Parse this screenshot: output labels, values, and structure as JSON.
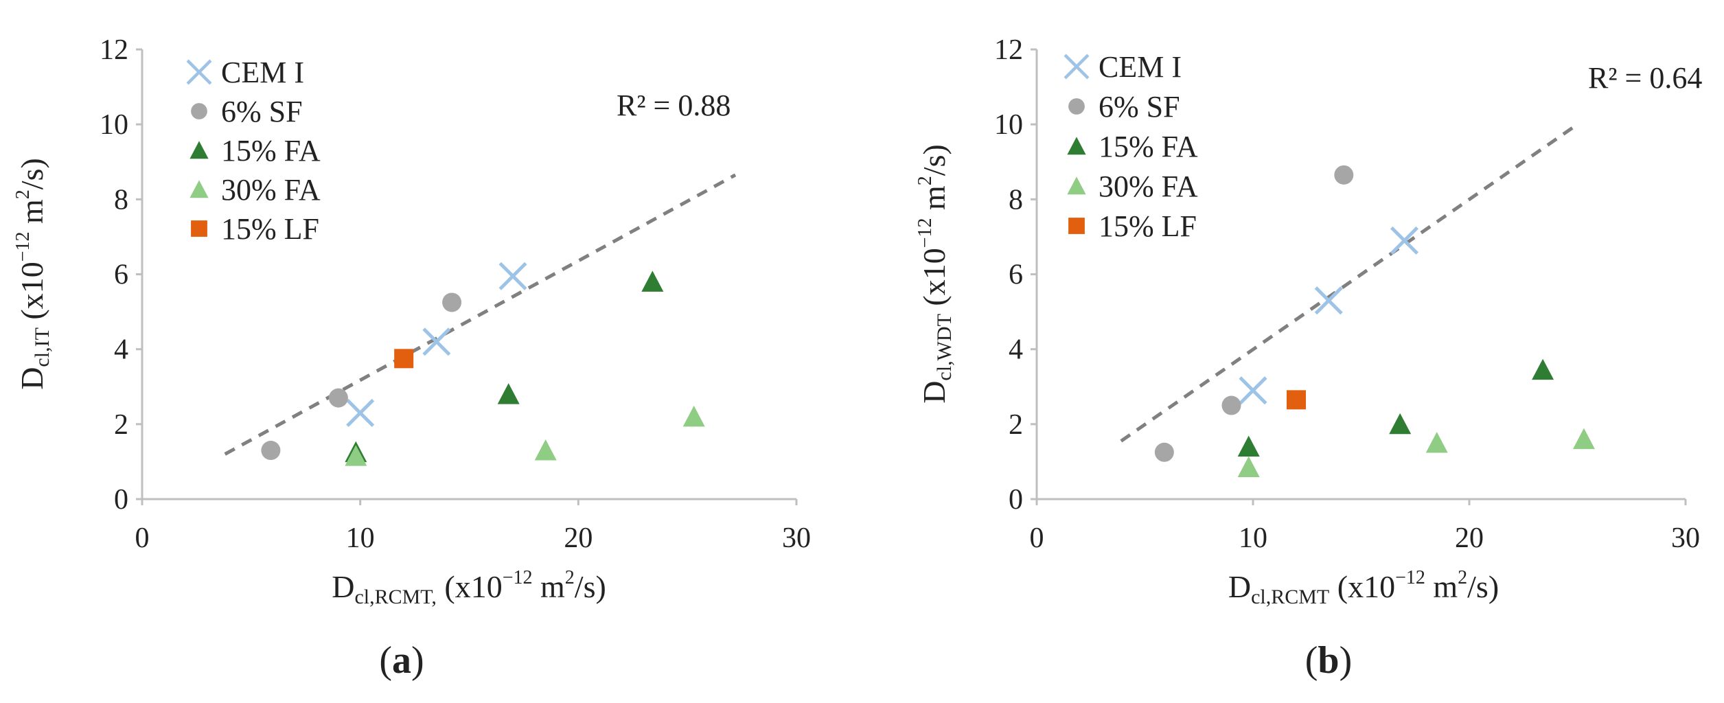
{
  "colors": {
    "cem": "#9dc3e6",
    "sf": "#a6a6a6",
    "fa15": "#2e7d32",
    "fa30": "#8fcd84",
    "lf": "#e25f0f",
    "trend": "#808080",
    "axis": "#c8c8c8"
  },
  "icons": {
    "CEM I": "cross-marker-icon",
    "6% SF": "circle-marker-icon",
    "15% FA": "triangle-marker-icon",
    "30% FA": "triangle-marker-icon",
    "15% LF": "square-marker-icon"
  },
  "chart_data": [
    {
      "type": "scatter",
      "id": "a",
      "caption": {
        "open": "(",
        "letter": "a",
        "close": ")"
      },
      "xlim": [
        0,
        30
      ],
      "ylim": [
        0,
        12
      ],
      "xticks": [
        "0",
        "10",
        "20",
        "30"
      ],
      "yticks": [
        "0",
        "2",
        "4",
        "6",
        "8",
        "10",
        "12"
      ],
      "xlabel": {
        "main": "D",
        "sub": "cl,RCMT,",
        "pre": " (x10",
        "sup": "−12",
        "mid": " m",
        "sup2": "2",
        "post": "/s)"
      },
      "ylabel": {
        "main": "D",
        "sub": "cl,IT",
        "pre": " (x10",
        "sup": "−12",
        "mid": " m",
        "sup2": "2",
        "post": "/s)"
      },
      "legend_position": "top-left",
      "r2": "R² = 0.88",
      "trendline": {
        "x": [
          3.8,
          27.2
        ],
        "y": [
          1.2,
          8.65
        ]
      },
      "series": [
        {
          "name": "CEM I",
          "marker": "x",
          "x": [
            10.0,
            13.5,
            17.0
          ],
          "y": [
            2.3,
            4.2,
            5.95
          ]
        },
        {
          "name": "6% SF",
          "marker": "circle",
          "x": [
            5.9,
            9.0,
            14.2
          ],
          "y": [
            1.3,
            2.7,
            5.25
          ]
        },
        {
          "name": "15% FA",
          "marker": "triangle",
          "x": [
            9.8,
            16.8,
            23.4
          ],
          "y": [
            1.25,
            2.8,
            5.8
          ]
        },
        {
          "name": "30% FA",
          "marker": "triangle",
          "x": [
            9.8,
            18.5,
            25.3
          ],
          "y": [
            1.15,
            1.3,
            2.2
          ]
        },
        {
          "name": "15% LF",
          "marker": "square",
          "x": [
            12.0
          ],
          "y": [
            3.75
          ]
        }
      ]
    },
    {
      "type": "scatter",
      "id": "b",
      "caption": {
        "open": "(",
        "letter": "b",
        "close": ")"
      },
      "xlim": [
        0,
        30
      ],
      "ylim": [
        0,
        12
      ],
      "xticks": [
        "0",
        "10",
        "20",
        "30"
      ],
      "yticks": [
        "0",
        "2",
        "4",
        "6",
        "8",
        "10",
        "12"
      ],
      "xlabel": {
        "main": "D",
        "sub": "cl,RCMT",
        "pre": " (x10",
        "sup": "−12",
        "mid": " m",
        "sup2": "2",
        "post": "/s)"
      },
      "ylabel": {
        "main": "D",
        "sub": "cl,WDT",
        "pre": " (x10",
        "sup": "−12",
        "mid": " m",
        "sup2": "2",
        "post": "/s)"
      },
      "legend_position": "top-left",
      "r2": "R² = 0.64",
      "trendline": {
        "x": [
          3.9,
          25.0
        ],
        "y": [
          1.55,
          10.0
        ]
      },
      "series": [
        {
          "name": "CEM I",
          "marker": "x",
          "x": [
            10.0,
            13.5,
            17.0
          ],
          "y": [
            2.9,
            5.3,
            6.9
          ]
        },
        {
          "name": "6% SF",
          "marker": "circle",
          "x": [
            5.9,
            9.0,
            14.2
          ],
          "y": [
            1.25,
            2.5,
            8.65
          ]
        },
        {
          "name": "15% FA",
          "marker": "triangle",
          "x": [
            9.8,
            16.8,
            23.4
          ],
          "y": [
            1.4,
            2.0,
            3.45
          ]
        },
        {
          "name": "30% FA",
          "marker": "triangle",
          "x": [
            9.8,
            18.5,
            25.3
          ],
          "y": [
            0.85,
            1.5,
            1.6
          ]
        },
        {
          "name": "15% LF",
          "marker": "square",
          "x": [
            12.0
          ],
          "y": [
            2.65
          ]
        }
      ]
    }
  ]
}
